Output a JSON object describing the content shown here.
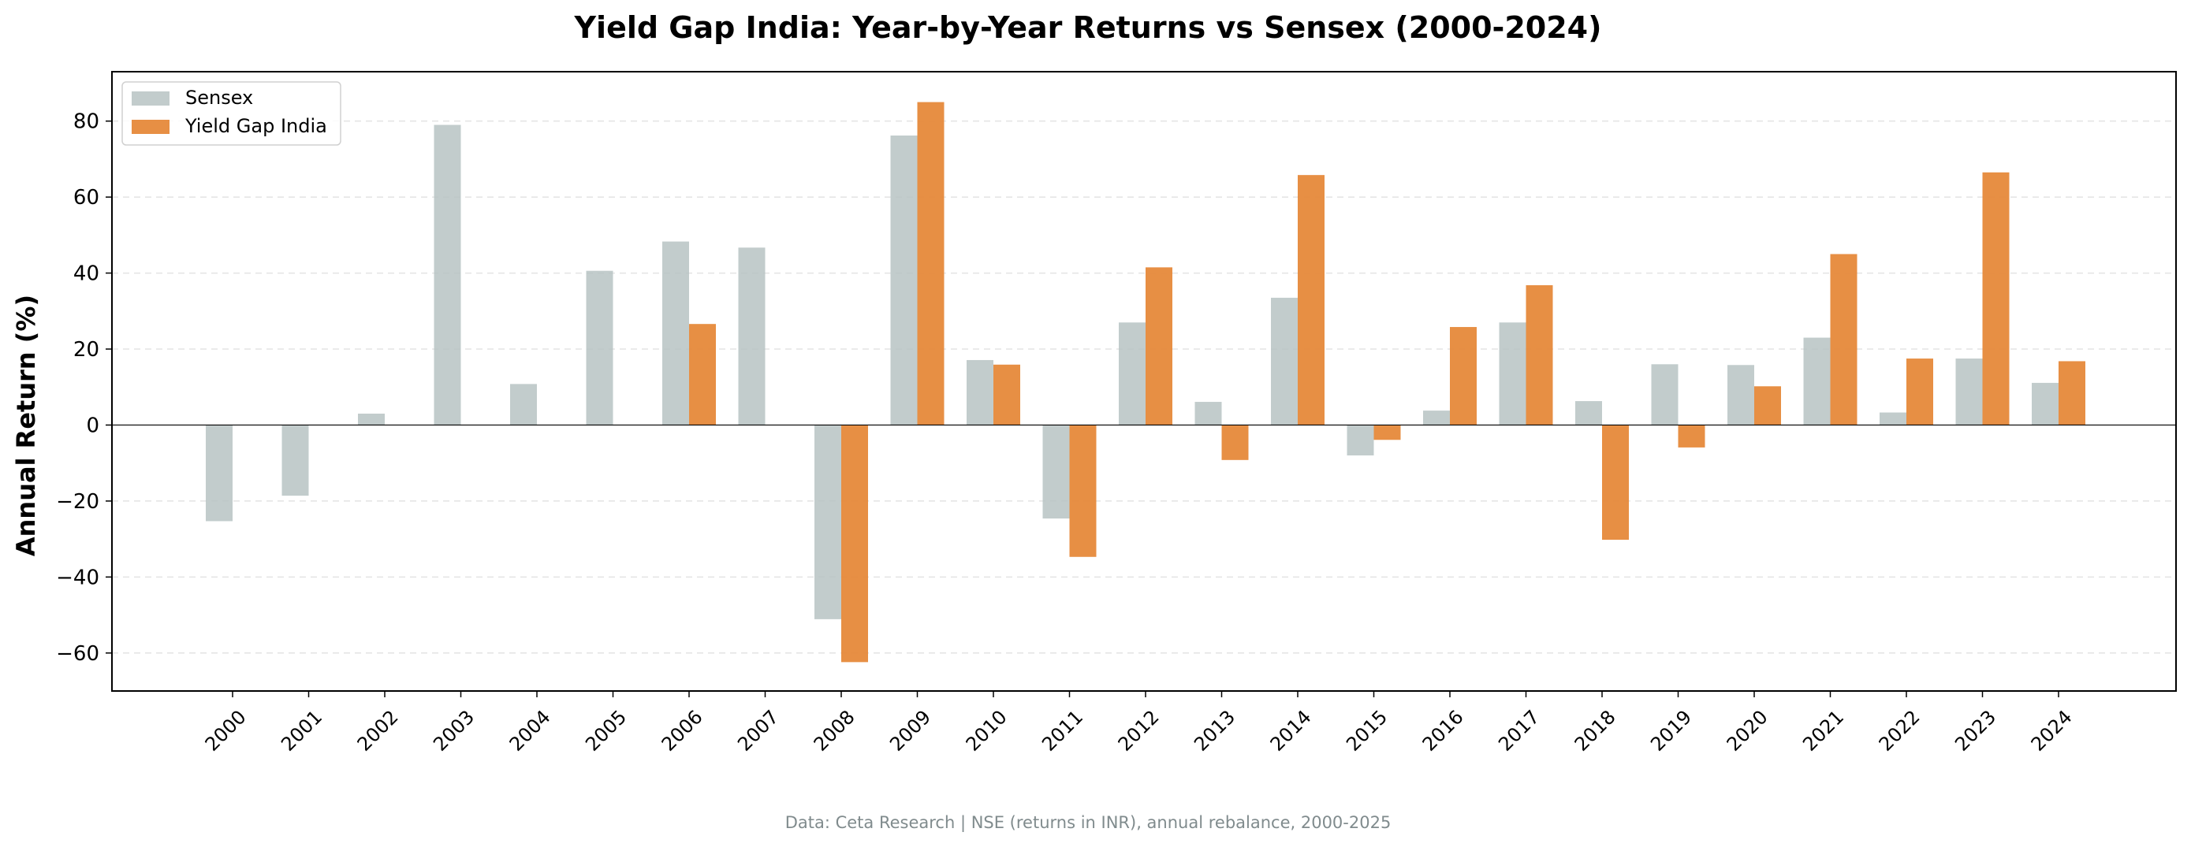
{
  "chart_data": {
    "type": "bar",
    "title": "Yield Gap India: Year-by-Year Returns vs Sensex (2000-2024)",
    "xlabel": "",
    "ylabel": "Annual Return (%)",
    "ylim": [
      -70,
      93
    ],
    "yticks": [
      -60,
      -40,
      -20,
      0,
      20,
      40,
      60,
      80
    ],
    "grid": "horizontal dashed",
    "legend_position": "top-left",
    "categories": [
      "2000",
      "2001",
      "2002",
      "2003",
      "2004",
      "2005",
      "2006",
      "2007",
      "2008",
      "2009",
      "2010",
      "2011",
      "2012",
      "2013",
      "2014",
      "2015",
      "2016",
      "2017",
      "2018",
      "2019",
      "2020",
      "2021",
      "2022",
      "2023",
      "2024"
    ],
    "series": [
      {
        "name": "Sensex",
        "color": "#b7c3c3",
        "values": [
          -25.3,
          -18.6,
          3.0,
          79.0,
          10.8,
          40.6,
          48.3,
          46.7,
          -51.1,
          76.2,
          17.1,
          -24.6,
          27.0,
          6.1,
          33.5,
          -8.0,
          3.8,
          27.0,
          6.3,
          16.0,
          15.8,
          23.0,
          3.3,
          17.5,
          11.1
        ]
      },
      {
        "name": "Yield Gap India",
        "color": "#e6893a",
        "values": [
          null,
          null,
          null,
          null,
          null,
          null,
          26.6,
          null,
          -62.4,
          85.0,
          15.9,
          -34.7,
          41.5,
          -9.2,
          65.8,
          -3.9,
          25.8,
          36.8,
          -30.2,
          -5.9,
          10.2,
          45.0,
          17.5,
          66.5,
          16.8
        ]
      }
    ]
  },
  "footnote": "Data: Ceta Research | NSE (returns in INR), annual rebalance, 2000-2025"
}
